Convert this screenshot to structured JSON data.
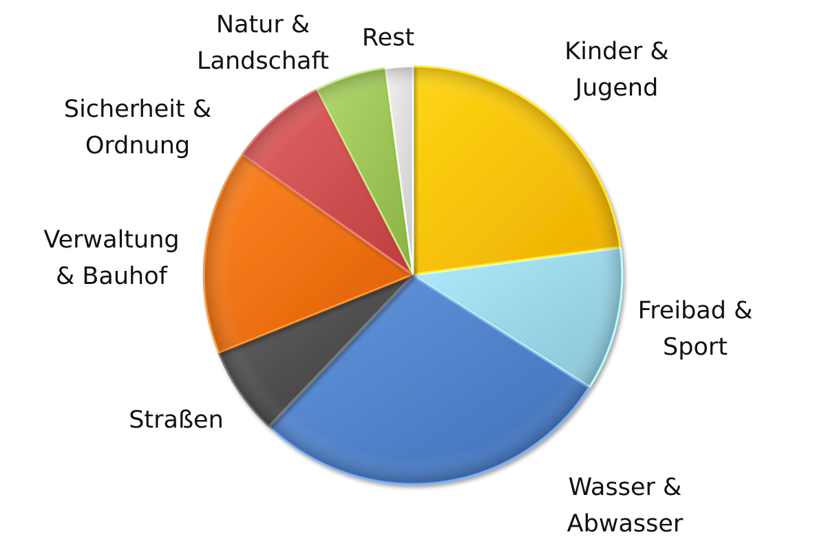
{
  "chart_data": {
    "type": "pie",
    "title": "",
    "legend": "none",
    "slices": [
      {
        "label_lines": [
          "Kinder &",
          "Jugend"
        ],
        "value": 22.9,
        "color": "#FFC000"
      },
      {
        "label_lines": [
          "Freibad &",
          "Sport"
        ],
        "value": 11.1,
        "color": "#99D5E6"
      },
      {
        "label_lines": [
          "Wasser &",
          "Abwasser"
        ],
        "value": 28.1,
        "color": "#4F81C8"
      },
      {
        "label_lines": [
          "Straßen"
        ],
        "value": 6.8,
        "color": "#4D4D4D"
      },
      {
        "label_lines": [
          "Verwaltung",
          "& Bauhof"
        ],
        "value": 15.9,
        "color": "#EE7012"
      },
      {
        "label_lines": [
          "Sicherheit &",
          "Ordnung"
        ],
        "value": 7.6,
        "color": "#CD5050"
      },
      {
        "label_lines": [
          "Natur &",
          "Landschaft"
        ],
        "value": 5.5,
        "color": "#9BC356"
      },
      {
        "label_lines": [
          "Rest"
        ],
        "value": 2.1,
        "color": "#DCDCDC"
      }
    ]
  }
}
